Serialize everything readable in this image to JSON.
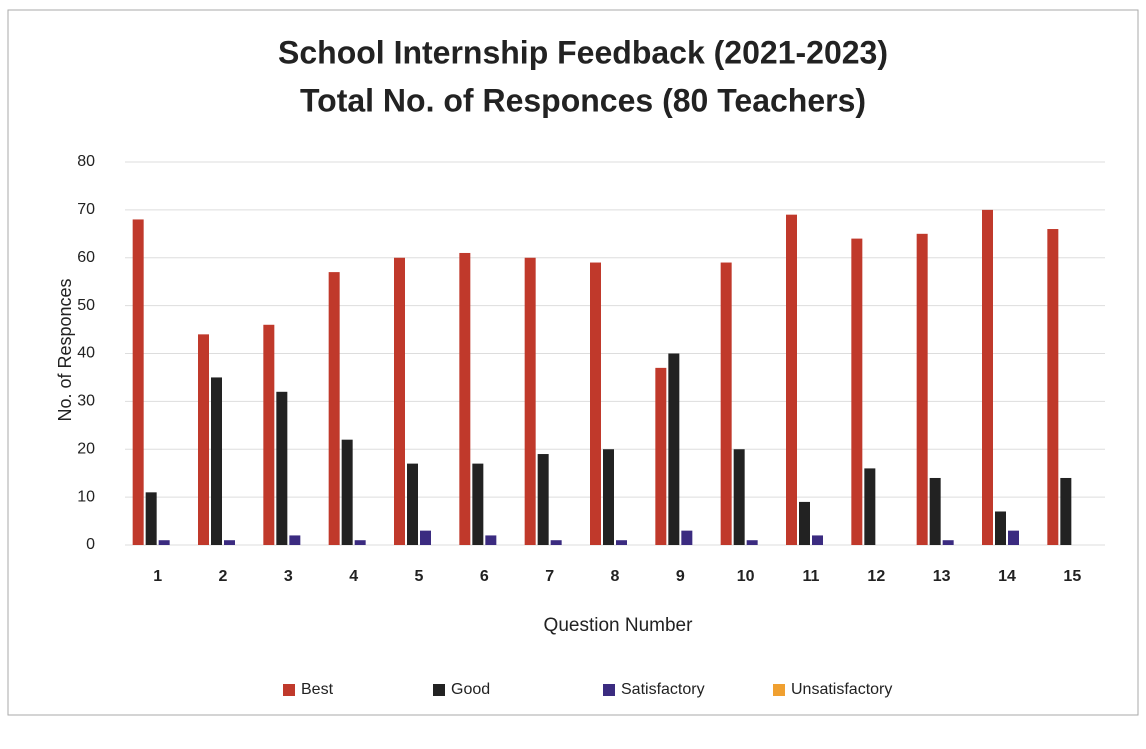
{
  "chart_data": {
    "type": "bar",
    "title": "School Internship Feedback (2021-2023)",
    "subtitle": "Total No. of Responces (80 Teachers)",
    "x_label": "Question Number",
    "y_label": "No. of Responces",
    "categories": [
      "1",
      "2",
      "3",
      "4",
      "5",
      "6",
      "7",
      "8",
      "9",
      "10",
      "11",
      "12",
      "13",
      "14",
      "15"
    ],
    "series": [
      {
        "name": "Best",
        "color": "#c0392b",
        "values": [
          68,
          44,
          46,
          57,
          60,
          61,
          60,
          59,
          37,
          59,
          69,
          64,
          65,
          70,
          66
        ]
      },
      {
        "name": "Good",
        "color": "#222222",
        "values": [
          11,
          35,
          32,
          22,
          17,
          17,
          19,
          20,
          40,
          20,
          9,
          16,
          14,
          7,
          14
        ]
      },
      {
        "name": "Satisfactory",
        "color": "#3b2b80",
        "values": [
          1,
          1,
          2,
          1,
          3,
          2,
          1,
          1,
          3,
          1,
          2,
          0,
          1,
          3,
          0
        ]
      },
      {
        "name": "Unsatisfactory",
        "color": "#f0a030",
        "values": [
          0,
          0,
          0,
          0,
          0,
          0,
          0,
          0,
          0,
          0,
          0,
          0,
          0,
          0,
          0
        ]
      }
    ],
    "ylim": [
      0,
      80
    ],
    "yticks": [
      0,
      10,
      20,
      30,
      40,
      50,
      60,
      70,
      80
    ],
    "grid": true,
    "legend": "bottom"
  }
}
